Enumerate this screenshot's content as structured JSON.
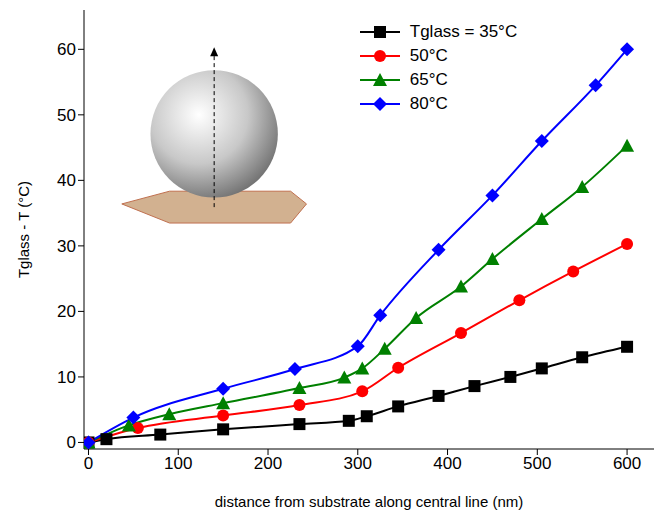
{
  "chart_data": {
    "type": "line",
    "title": null,
    "x_label": "distance from substrate along central line (nm)",
    "y_label": "Tglass - T (°C)",
    "xlim": [
      -5,
      630
    ],
    "xticks": [
      0,
      100,
      200,
      300,
      400,
      500,
      600
    ],
    "ylim": [
      -1,
      66
    ],
    "yticks": [
      0,
      10,
      20,
      30,
      40,
      50,
      60
    ],
    "grid": false,
    "legend": "upper right",
    "series": [
      {
        "name": "Tglass = 35°C",
        "color": "#000000",
        "marker": "square",
        "x": [
          0,
          20,
          80,
          150,
          235,
          290,
          310,
          345,
          390,
          430,
          470,
          505,
          550,
          600
        ],
        "values": [
          0,
          0.5,
          1.2,
          2.0,
          2.8,
          3.3,
          4.0,
          5.5,
          7.1,
          8.6,
          10.0,
          11.3,
          13.0,
          14.6
        ]
      },
      {
        "name": "50°C",
        "color": "#ff0000",
        "marker": "circle",
        "x": [
          0,
          55,
          150,
          235,
          305,
          345,
          415,
          480,
          540,
          600
        ],
        "values": [
          0,
          2.2,
          4.1,
          5.7,
          7.8,
          11.4,
          16.7,
          21.7,
          26.1,
          30.3
        ]
      },
      {
        "name": "65°C",
        "color": "#008000",
        "marker": "triangle",
        "x": [
          0,
          45,
          90,
          150,
          235,
          285,
          305,
          330,
          365,
          415,
          450,
          505,
          550,
          600
        ],
        "values": [
          0,
          2.6,
          4.3,
          6.0,
          8.3,
          9.9,
          11.3,
          14.3,
          19.0,
          23.8,
          28.0,
          34.1,
          39.0,
          45.3
        ]
      },
      {
        "name": "80°C",
        "color": "#0000ff",
        "marker": "diamond",
        "x": [
          0,
          50,
          150,
          230,
          300,
          325,
          390,
          450,
          505,
          565,
          600
        ],
        "values": [
          0,
          3.8,
          8.2,
          11.2,
          14.7,
          19.4,
          29.4,
          37.7,
          46.0,
          54.5,
          60.0
        ]
      }
    ]
  }
}
